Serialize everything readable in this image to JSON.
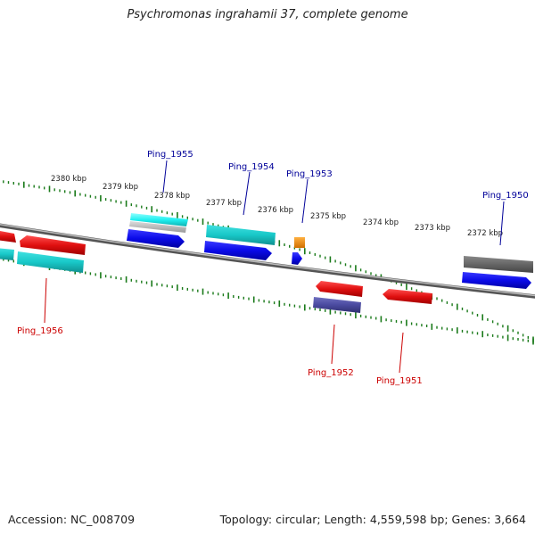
{
  "title": "Psychromonas ingrahamii 37, complete genome",
  "footer": {
    "accession": "Accession: NC_008709",
    "topology": "Topology: circular; Length: 4,559,598 bp; Genes: 3,664"
  },
  "ruler": {
    "labels": [
      "2380 kbp",
      "2379 kbp",
      "2378 kbp",
      "2377 kbp",
      "2376 kbp",
      "2375 kbp",
      "2374 kbp",
      "2373 kbp",
      "2372 kbp"
    ]
  },
  "genes": {
    "forward_label_color": "#000099",
    "reverse_label_color": "#cc0000",
    "labels": [
      "Ping_1955",
      "Ping_1954",
      "Ping_1953",
      "Ping_1950",
      "Ping_1956",
      "Ping_1952",
      "Ping_1951"
    ]
  },
  "colors": {
    "backbone": "#8a8a8a",
    "tick": "#1a7a1a",
    "red": "#e01010",
    "cyan": "#18c8c8",
    "blue": "#0a0ae8",
    "orange": "#f08a10",
    "gray": "#666666",
    "slate": "#4a4aa0"
  }
}
